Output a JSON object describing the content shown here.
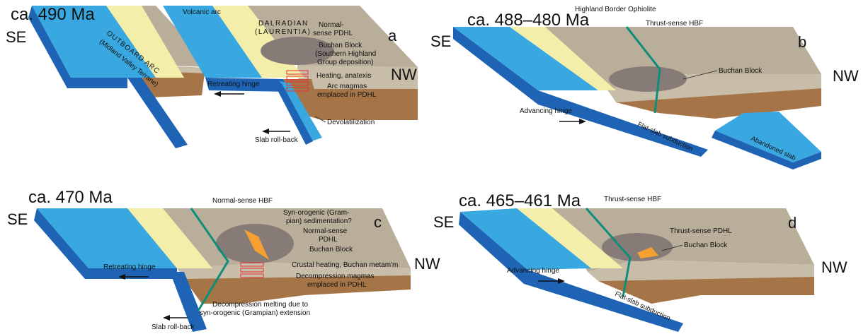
{
  "panels": {
    "a": {
      "age": "ca. 490 Ma",
      "letter": "a",
      "se": "SE",
      "nw": "NW",
      "labels": {
        "volcanic_arc": "Volcanic arc",
        "dalradian_1": "DALRADIAN",
        "dalradian_2": "(LAURENTIA)",
        "outboard_arc": "OUTBOARD ARC",
        "midland_valley": "(Midland Valley Terrane)",
        "normal_pdhl_1": "Normal-",
        "normal_pdhl_2": "sense PDHL",
        "buchan_1": "Buchan Block",
        "buchan_2": "(Southern Highland",
        "buchan_3": "Group deposition)",
        "heating": "Heating, anatexis",
        "arc_magmas_1": "Arc magmas",
        "arc_magmas_2": "emplaced in PDHL",
        "retreating_hinge": "Retreating hinge",
        "devolatilization": "Devolatilization",
        "slab_rollback": "Slab roll-back"
      }
    },
    "b": {
      "age": "ca. 488–480 Ma",
      "letter": "b",
      "se": "SE",
      "nw": "NW",
      "labels": {
        "ophiolite": "Highland Border Ophiolite",
        "thrust_hbf": "Thrust-sense HBF",
        "buchan": "Buchan Block",
        "advancing_hinge": "Advancing hinge",
        "flat_slab": "Flat-slab subduction",
        "abandoned_slab": "Abandoned slab"
      }
    },
    "c": {
      "age": "ca. 470 Ma",
      "letter": "c",
      "se": "SE",
      "nw": "NW",
      "labels": {
        "normal_hbf": "Normal-sense HBF",
        "syn_orogenic_1": "Syn-orogenic (Gram-",
        "syn_orogenic_2": "pian) sedimentation?",
        "normal_pdhl_1": "Normal-sense",
        "normal_pdhl_2": "PDHL",
        "buchan": "Buchan Block",
        "crustal_heating": "Crustal heating, Buchan metam'm",
        "decompression_magmas_1": "Decompression magmas",
        "decompression_magmas_2": "emplaced in PDHL",
        "retreating_hinge": "Retreating hinge",
        "decompression_melting_1": "Decompression melting due to",
        "decompression_melting_2": "syn-orogenic (Grampian) extension",
        "slab_rollback": "Slab roll-back"
      }
    },
    "d": {
      "age": "ca. 465–461 Ma",
      "letter": "d",
      "se": "SE",
      "nw": "NW",
      "labels": {
        "thrust_hbf": "Thrust-sense HBF",
        "thrust_pdhl": "Thrust-sense PDHL",
        "buchan": "Buchan Block",
        "advancing_hinge": "Advancing hinge",
        "flat_slab": "Flat-slab subduction"
      }
    }
  },
  "colors": {
    "ocean": "#3aa8e0",
    "ocean_top": "#5bbcec",
    "slab": "#1e63b4",
    "slab_dark": "#164e94",
    "sediment": "#f3efaa",
    "crust_top": "#b9ae99",
    "crust_front": "#c7bda8",
    "mantle": "#a57548",
    "buchan": "#877b78",
    "magma": "#f5a030",
    "fault": "#0e8c7c",
    "heating": "#e53030"
  }
}
